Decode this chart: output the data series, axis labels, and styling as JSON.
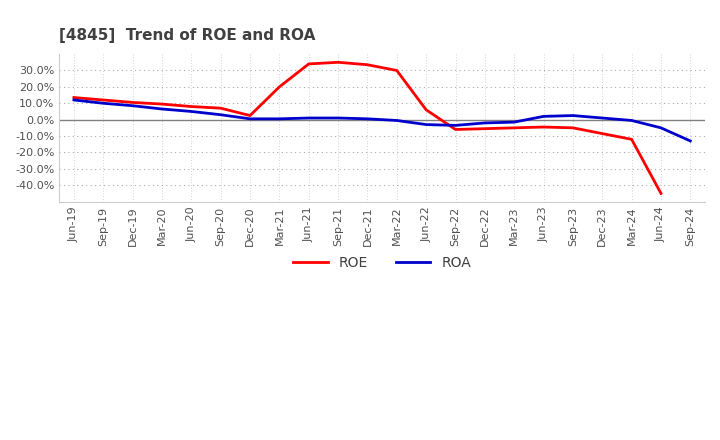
{
  "title": "[4845]  Trend of ROE and ROA",
  "title_color": "#404040",
  "background_color": "#ffffff",
  "plot_background": "#ffffff",
  "grid_color": "#aaaaaa",
  "x_labels": [
    "Jun-19",
    "Sep-19",
    "Dec-19",
    "Mar-20",
    "Jun-20",
    "Sep-20",
    "Dec-20",
    "Mar-21",
    "Jun-21",
    "Sep-21",
    "Dec-21",
    "Mar-22",
    "Jun-22",
    "Sep-22",
    "Dec-22",
    "Mar-23",
    "Jun-23",
    "Sep-23",
    "Dec-23",
    "Mar-24",
    "Jun-24",
    "Sep-24"
  ],
  "roe": [
    13.5,
    12.0,
    10.5,
    9.5,
    8.0,
    7.0,
    2.5,
    20.0,
    34.0,
    35.0,
    33.5,
    30.0,
    6.0,
    -6.0,
    -5.5,
    -5.0,
    -4.5,
    -5.0,
    -8.5,
    -12.0,
    -45.0,
    null
  ],
  "roa": [
    12.0,
    10.0,
    8.5,
    6.5,
    5.0,
    3.0,
    0.5,
    0.5,
    1.0,
    1.0,
    0.5,
    -0.5,
    -3.0,
    -3.5,
    -2.0,
    -1.5,
    2.0,
    2.5,
    1.0,
    -0.5,
    -5.0,
    -13.0
  ],
  "roe_color": "#ff0000",
  "roa_color": "#0000cc",
  "ylim": [
    -50,
    40
  ],
  "yticks": [
    -40,
    -30,
    -20,
    -10,
    0,
    10,
    20,
    30
  ],
  "line_width": 2.0
}
